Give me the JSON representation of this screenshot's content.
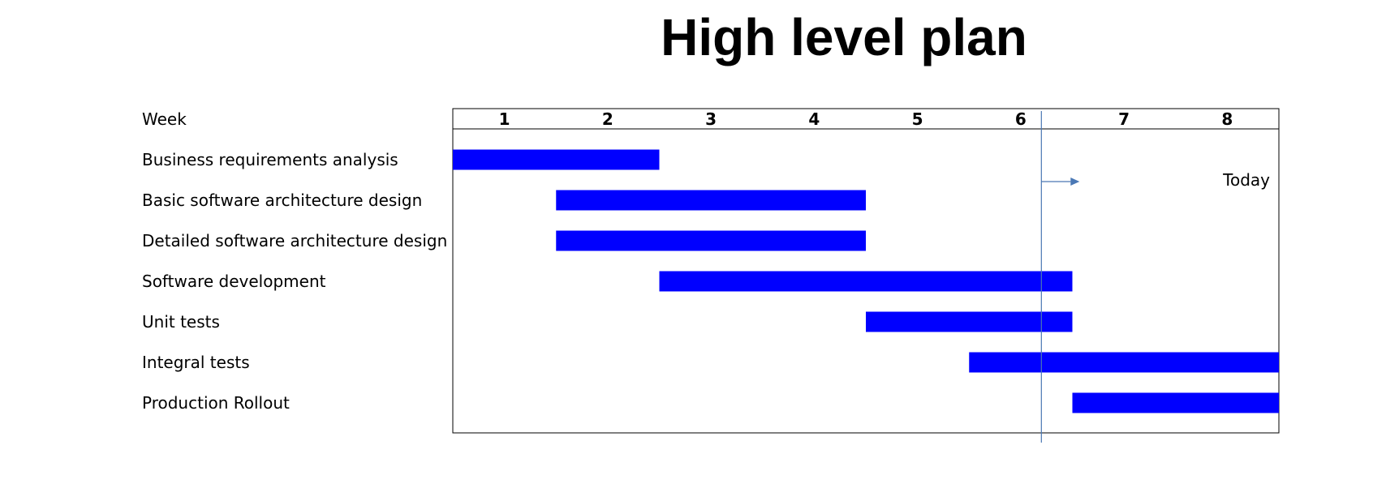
{
  "chart_data": {
    "type": "gantt",
    "title": "High level plan",
    "x_axis_label": "Week",
    "weeks": [
      "1",
      "2",
      "3",
      "4",
      "5",
      "6",
      "7",
      "8"
    ],
    "xlim": [
      1,
      9
    ],
    "tasks": [
      {
        "name": "Business requirements analysis",
        "start_week": 1.0,
        "end_week": 3.0
      },
      {
        "name": "Basic software architecture design",
        "start_week": 2.0,
        "end_week": 5.0
      },
      {
        "name": "Detailed software architecture design",
        "start_week": 2.0,
        "end_week": 5.0
      },
      {
        "name": "Software development",
        "start_week": 3.0,
        "end_week": 7.0
      },
      {
        "name": "Unit tests",
        "start_week": 5.0,
        "end_week": 7.0
      },
      {
        "name": "Integral tests",
        "start_week": 6.0,
        "end_week": 9.0
      },
      {
        "name": "Production Rollout",
        "start_week": 7.0,
        "end_week": 9.0
      }
    ],
    "today": {
      "label": "Today",
      "week": 6.7
    },
    "colors": {
      "bar": "#0000ff",
      "today_line": "#4a78b5",
      "frame": "#000000"
    }
  }
}
